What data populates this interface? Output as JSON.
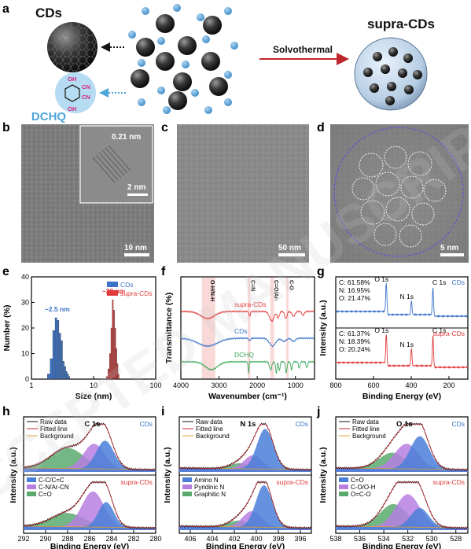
{
  "figure": {
    "panels": {
      "a": "a",
      "b": "b",
      "c": "c",
      "d": "d",
      "e": "e",
      "f": "f",
      "g": "g",
      "h": "h",
      "i": "i",
      "j": "j"
    },
    "schematic": {
      "cds_label": "CDs",
      "dchq_label": "DCHQ",
      "supra_label": "supra-CDs",
      "arrow_label": "Solvothermal",
      "molecule": {
        "oh": "OH",
        "cn": "CN"
      }
    },
    "tem": {
      "b": {
        "inset_lattice": "0.21 nm",
        "inset_scale": "2 nm",
        "scale": "10 nm"
      },
      "c": {
        "scale": "50 nm"
      },
      "d": {
        "scale": "5 nm"
      }
    },
    "watermark": "ACCEPTED MANUSCRIPT",
    "colors": {
      "cds": "#3a73c8",
      "supra": "#e03a3a",
      "dchq": "#3aa85a",
      "accent_dchq": "#4da6d9"
    }
  },
  "chart_data": [
    {
      "panel": "e",
      "type": "bar",
      "xlabel": "Size (nm)",
      "ylabel": "Number (%)",
      "xscale": "log",
      "xlim": [
        1,
        100
      ],
      "ylim": [
        0,
        40
      ],
      "xticks": [
        "1",
        "10",
        "100"
      ],
      "yticks": [
        "0",
        "10",
        "20",
        "30",
        "40"
      ],
      "legend_position": "top-right",
      "annotations": [
        "~2.5 nm",
        "~20 nm"
      ],
      "series": [
        {
          "name": "CDs",
          "color": "#3a73c8",
          "x": [
            1.9,
            2.1,
            2.3,
            2.5,
            2.7,
            2.9,
            3.1,
            3.3,
            3.5,
            3.7,
            3.9,
            4.1
          ],
          "values": [
            2,
            8,
            19,
            24,
            23,
            18,
            15,
            7,
            5,
            3,
            2,
            1
          ]
        },
        {
          "name": "supra-CDs",
          "color": "#e03a3a",
          "x": [
            16.5,
            17.5,
            18.5,
            19.5,
            20.5,
            21.5,
            22.5,
            23.5,
            24.5,
            25.5
          ],
          "values": [
            1,
            4,
            10,
            20,
            31,
            27,
            20,
            12,
            6,
            2
          ]
        }
      ]
    },
    {
      "panel": "f",
      "type": "line",
      "xlabel": "Wavenumber (cm⁻¹)",
      "ylabel": "Transmittance (%)",
      "xlim": [
        4000,
        500
      ],
      "xticks": [
        "4000",
        "3000",
        "2000",
        "1000"
      ],
      "bands": [
        {
          "label": "O-H/N-H",
          "from": 3450,
          "to": 3100
        },
        {
          "label": "C≡N",
          "from": 2250,
          "to": 2180
        },
        {
          "label": "C=O/Ar-",
          "from": 1660,
          "to": 1560
        },
        {
          "label": "C-O",
          "from": 1240,
          "to": 1180
        }
      ],
      "series": [
        {
          "name": "supra-CDs",
          "color": "#e03a3a"
        },
        {
          "name": "CDs",
          "color": "#3a73c8"
        },
        {
          "name": "DCHQ",
          "color": "#3aa85a"
        }
      ]
    },
    {
      "panel": "g",
      "type": "line",
      "xlabel": "Binding Energy (eV)",
      "ylabel": "Intensity (a.u.)",
      "xlim": [
        800,
        100
      ],
      "xticks": [
        "800",
        "600",
        "400",
        "200"
      ],
      "series": [
        {
          "name": "CDs",
          "color": "#3a73c8",
          "composition": [
            "C: 61.58%",
            "N: 16.95%",
            "O: 21.47%"
          ],
          "peaks": [
            {
              "label": "O 1s",
              "x": 532
            },
            {
              "label": "N 1s",
              "x": 399
            },
            {
              "label": "C 1s",
              "x": 285
            }
          ]
        },
        {
          "name": "supra-CDs",
          "color": "#e03a3a",
          "composition": [
            "C: 61.37%",
            "N: 18.39%",
            "O: 20.24%"
          ],
          "peaks": [
            {
              "label": "O 1s",
              "x": 532
            },
            {
              "label": "N 1s",
              "x": 399
            },
            {
              "label": "C 1s",
              "x": 285
            }
          ]
        }
      ]
    },
    {
      "panel": "h",
      "type": "line",
      "title": "C 1s",
      "xlabel": "Binding Energy (eV)",
      "ylabel": "Intensity (a.u.)",
      "xlim": [
        292,
        280
      ],
      "xticks": [
        "292",
        "290",
        "288",
        "286",
        "284",
        "282",
        "280"
      ],
      "legend_top": [
        "Raw data",
        "Fitted line",
        "Background"
      ],
      "legend_bottom": [
        {
          "label": "C-C/C=C",
          "color": "#4a7fd8"
        },
        {
          "label": "C-N/Ar-CN",
          "color": "#b67fe0"
        },
        {
          "label": "C=O",
          "color": "#5aaa70"
        }
      ],
      "series": [
        {
          "name": "CDs",
          "components": [
            {
              "label": "C-C/C=C",
              "center": 284.6,
              "height": 0.62,
              "width": 0.8
            },
            {
              "label": "C-N/Ar-CN",
              "center": 285.6,
              "height": 0.55,
              "width": 0.95
            },
            {
              "label": "C=O",
              "center": 288.0,
              "height": 0.45,
              "width": 1.5
            }
          ]
        },
        {
          "name": "supra-CDs",
          "components": [
            {
              "label": "C-C/C=C",
              "center": 284.5,
              "height": 0.55,
              "width": 0.7
            },
            {
              "label": "C-N/Ar-CN",
              "center": 285.7,
              "height": 0.78,
              "width": 1.0
            },
            {
              "label": "C=O",
              "center": 288.0,
              "height": 0.3,
              "width": 1.5
            }
          ]
        }
      ]
    },
    {
      "panel": "i",
      "type": "line",
      "title": "N 1s",
      "xlabel": "Binding Energy (eV)",
      "ylabel": "Intensity (a.u.)",
      "xlim": [
        407,
        395
      ],
      "xticks": [
        "406",
        "404",
        "402",
        "400",
        "398",
        "396"
      ],
      "legend_top": [
        "Raw data",
        "Fitted line",
        "Background"
      ],
      "legend_bottom": [
        {
          "label": "Amino N",
          "color": "#4a7fd8"
        },
        {
          "label": "Pyridinic N",
          "color": "#b67fe0"
        },
        {
          "label": "Graphitic N",
          "color": "#5aaa70"
        }
      ],
      "series": [
        {
          "name": "CDs",
          "components": [
            {
              "label": "Amino N",
              "center": 399.2,
              "height": 0.88,
              "width": 0.75
            },
            {
              "label": "Pyridinic N",
              "center": 400.3,
              "height": 0.3,
              "width": 0.8
            },
            {
              "label": "Graphitic N",
              "center": 401.5,
              "height": 0.12,
              "width": 0.9
            }
          ]
        },
        {
          "name": "supra-CDs",
          "components": [
            {
              "label": "Amino N",
              "center": 399.3,
              "height": 0.92,
              "width": 0.75
            },
            {
              "label": "Pyridinic N",
              "center": 400.4,
              "height": 0.35,
              "width": 0.85
            },
            {
              "label": "Graphitic N",
              "center": 401.6,
              "height": 0.14,
              "width": 0.9
            }
          ]
        }
      ]
    },
    {
      "panel": "j",
      "type": "line",
      "title": "O 1s",
      "xlabel": "Binding Energy (eV)",
      "ylabel": "Intensity (a.u.)",
      "xlim": [
        538,
        527
      ],
      "xticks": [
        "538",
        "536",
        "534",
        "532",
        "530",
        "528"
      ],
      "legend_top": [
        "Raw data",
        "Fitted line",
        "Background"
      ],
      "legend_bottom": [
        {
          "label": "C=O",
          "color": "#4a7fd8"
        },
        {
          "label": "C-O/O-H",
          "color": "#b67fe0"
        },
        {
          "label": "O=C-O",
          "color": "#5aaa70"
        }
      ],
      "series": [
        {
          "name": "CDs",
          "components": [
            {
              "label": "C=O",
              "center": 531.0,
              "height": 0.72,
              "width": 0.8
            },
            {
              "label": "C-O/O-H",
              "center": 532.1,
              "height": 0.55,
              "width": 1.0
            },
            {
              "label": "O=C-O",
              "center": 533.3,
              "height": 0.35,
              "width": 1.1
            }
          ]
        },
        {
          "name": "supra-CDs",
          "components": [
            {
              "label": "C=O",
              "center": 531.0,
              "height": 0.42,
              "width": 0.75
            },
            {
              "label": "C-O/O-H",
              "center": 532.0,
              "height": 0.72,
              "width": 1.0
            },
            {
              "label": "O=C-O",
              "center": 533.2,
              "height": 0.5,
              "width": 1.1
            }
          ]
        }
      ]
    }
  ]
}
